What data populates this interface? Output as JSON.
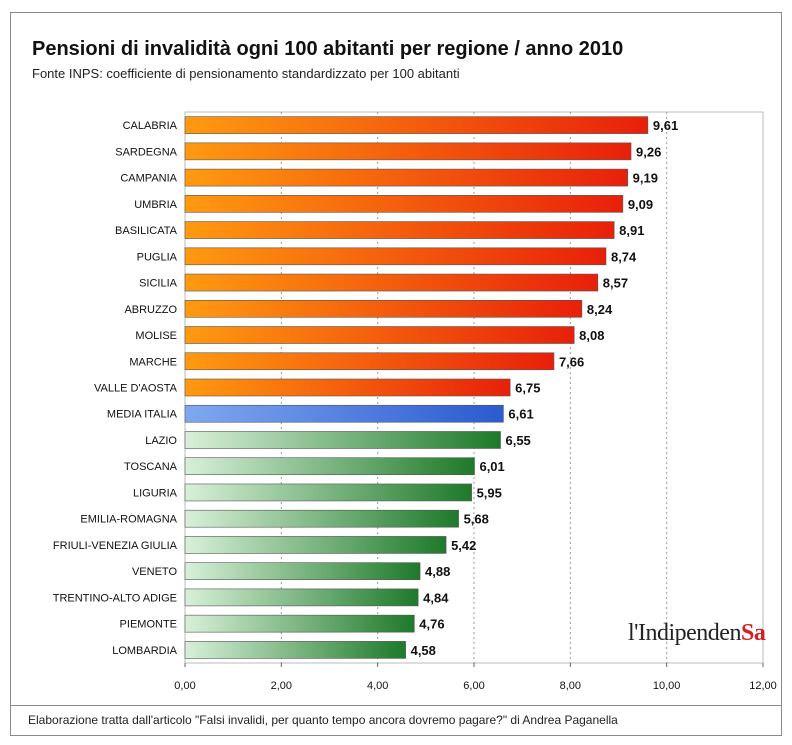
{
  "title": "Pensioni di invalidità ogni 100 abitanti per regione / anno 2010",
  "subtitle": "Fonte INPS: coefficiente di pensionamento standardizzato per 100 abitanti",
  "footer": "Elaborazione tratta dall'articolo \"Falsi invalidi, per quanto tempo ancora dovremo pagare?\" di Andrea Paganella",
  "logo": {
    "text_main": "l'Indipenden",
    "text_accent": "Sa"
  },
  "colors": {
    "regions_above_average": [
      "#ff9a10",
      "#e8200a"
    ],
    "average": [
      "#7fa8f0",
      "#2a5bd0"
    ],
    "regions_below_average": [
      "#d8f0d8",
      "#1e7a2a"
    ],
    "grid": "#999999"
  },
  "chart_data": {
    "type": "bar",
    "orientation": "horizontal",
    "categories": [
      "CALABRIA",
      "SARDEGNA",
      "CAMPANIA",
      "UMBRIA",
      "BASILICATA",
      "PUGLIA",
      "SICILIA",
      "ABRUZZO",
      "MOLISE",
      "MARCHE",
      "VALLE D'AOSTA",
      "MEDIA ITALIA",
      "LAZIO",
      "TOSCANA",
      "LIGURIA",
      "EMILIA-ROMAGNA",
      "FRIULI-VENEZIA GIULIA",
      "VENETO",
      "TRENTINO-ALTO ADIGE",
      "PIEMONTE",
      "LOMBARDIA"
    ],
    "values": [
      9.61,
      9.26,
      9.19,
      9.09,
      8.91,
      8.74,
      8.57,
      8.24,
      8.08,
      7.66,
      6.75,
      6.61,
      6.55,
      6.01,
      5.95,
      5.68,
      5.42,
      4.88,
      4.84,
      4.76,
      4.58
    ],
    "value_labels": [
      "9,61",
      "9,26",
      "9,19",
      "9,09",
      "8,91",
      "8,74",
      "8,57",
      "8,24",
      "8,08",
      "7,66",
      "6,75",
      "6,61",
      "6,55",
      "6,01",
      "5,95",
      "5,68",
      "5,42",
      "4,88",
      "4,84",
      "4,76",
      "4,58"
    ],
    "average_category": "MEDIA ITALIA",
    "xlim": [
      0,
      12
    ],
    "xticks": [
      0,
      2,
      4,
      6,
      8,
      10,
      12
    ],
    "xtick_labels": [
      "0,00",
      "2,00",
      "4,00",
      "6,00",
      "8,00",
      "10,00",
      "12,00"
    ],
    "grid": "vertical dashed",
    "legend": "none"
  }
}
